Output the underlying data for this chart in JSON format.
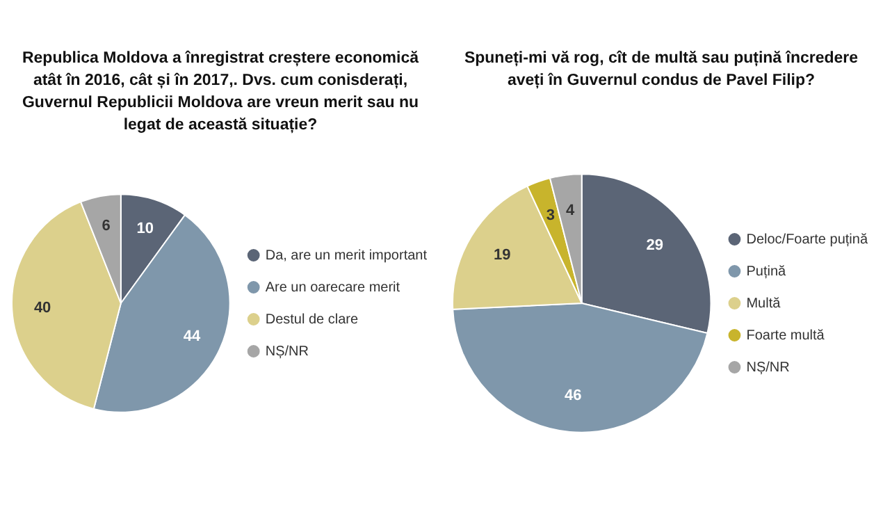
{
  "chart_data": [
    {
      "type": "pie",
      "title": "Republica Moldova a înregistrat creștere economică atât în 2016, cât și în 2017,. Dvs. cum conisderați, Guvernul Republicii Moldova are vreun merit sau nu legat de această situație?",
      "categories": [
        "Da, are un merit important",
        "Are un oarecare merit",
        "Destul de clare",
        "NȘ/NR"
      ],
      "values": [
        10,
        44,
        40,
        6
      ],
      "colors": [
        "#5b6576",
        "#7f97ab",
        "#dcd08c",
        "#a6a6a6"
      ],
      "data_labels": true,
      "legend": "right"
    },
    {
      "type": "pie",
      "title": "Spuneți-mi vă rog, cît de multă sau puțină încredere aveți în Guvernul condus de Pavel Filip?",
      "categories": [
        "Deloc/Foarte puțină",
        "Puțină",
        "Multă",
        "Foarte multă",
        "NȘ/NR"
      ],
      "values": [
        29,
        46,
        19,
        3,
        4
      ],
      "colors": [
        "#5b6576",
        "#7f97ab",
        "#dcd08c",
        "#c8b42c",
        "#a6a6a6"
      ],
      "data_labels": true,
      "legend": "right"
    }
  ]
}
